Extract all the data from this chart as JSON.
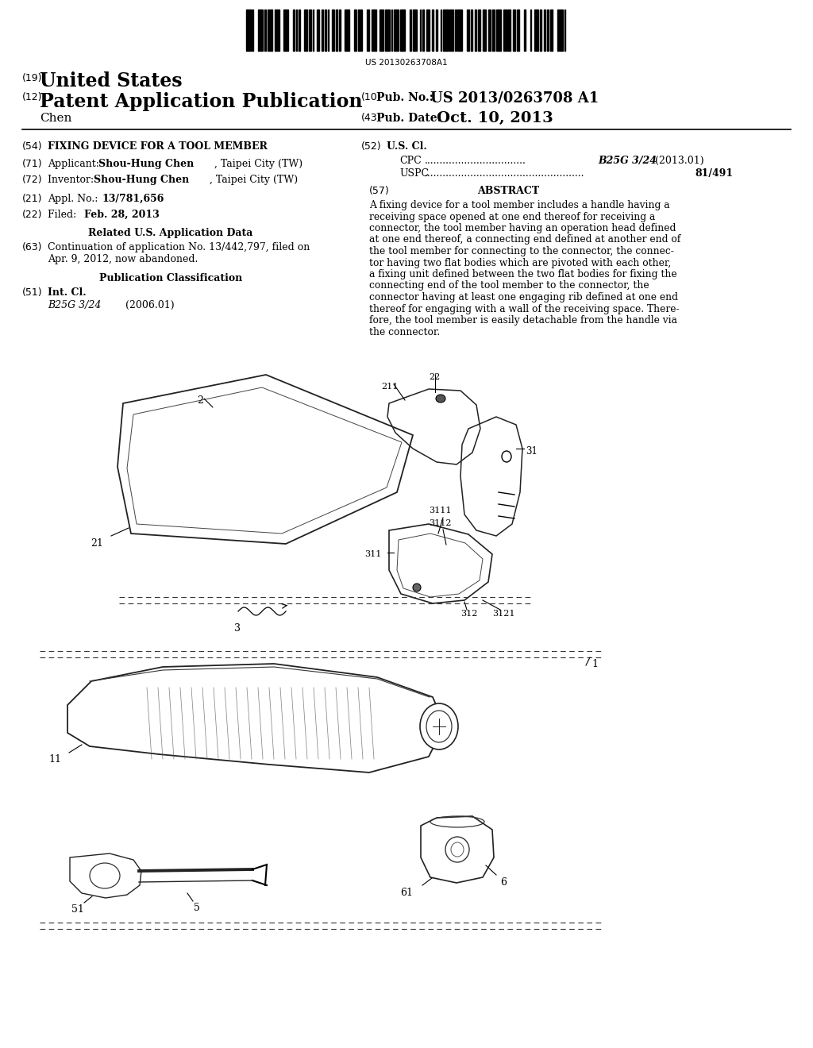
{
  "background_color": "#ffffff",
  "barcode_text": "US 20130263708A1",
  "header": {
    "line1_num": "(19)",
    "line1_text": "United States",
    "line2_num": "(12)",
    "line2_text": "Patent Application Publication",
    "line3_left": "Chen",
    "pub_no_num": "(10)",
    "pub_no_label": "Pub. No.:",
    "pub_no_val": "US 2013/0263708 A1",
    "pub_date_num": "(43)",
    "pub_date_label": "Pub. Date:",
    "pub_date_val": "Oct. 10, 2013"
  },
  "left_col": {
    "title_num": "(54)",
    "title_text": "FIXING DEVICE FOR A TOOL MEMBER",
    "applicant_num": "(71)",
    "applicant_label": "Applicant:",
    "applicant_val": "Shou-Hung Chen",
    "applicant_addr": ", Taipei City (TW)",
    "inventor_num": "(72)",
    "inventor_label": "Inventor:",
    "inventor_val": "Shou-Hung Chen",
    "inventor_addr": ", Taipei City (TW)",
    "appl_num_tag": "(21)",
    "appl_num_label": "Appl. No.:",
    "appl_num_val": "13/781,656",
    "filed_num": "(22)",
    "filed_label": "Filed:",
    "filed_val": "Feb. 28, 2013",
    "related_header": "Related U.S. Application Data",
    "continuation_num": "(63)",
    "continuation_line1": "Continuation of application No. 13/442,797, filed on",
    "continuation_line2": "Apr. 9, 2012, now abandoned.",
    "pub_class_header": "Publication Classification",
    "int_cl_num": "(51)",
    "int_cl_label": "Int. Cl.",
    "int_cl_val": "B25G 3/24",
    "int_cl_year": "(2006.01)"
  },
  "right_col": {
    "us_cl_num": "(52)",
    "us_cl_label": "U.S. Cl.",
    "cpc_label": "CPC",
    "cpc_val": "B25G 3/24",
    "cpc_year": "(2013.01)",
    "uspc_label": "USPC",
    "uspc_val": "81/491",
    "abstract_num": "(57)",
    "abstract_header": "ABSTRACT",
    "abstract_lines": [
      "A fixing device for a tool member includes a handle having a",
      "receiving space opened at one end thereof for receiving a",
      "connector, the tool member having an operation head defined",
      "at one end thereof, a connecting end defined at another end of",
      "the tool member for connecting to the connector, the connec-",
      "tor having two flat bodies which are pivoted with each other,",
      "a fixing unit defined between the two flat bodies for fixing the",
      "connecting end of the tool member to the connector, the",
      "connector having at least one engaging rib defined at one end",
      "thereof for engaging with a wall of the receiving space. There-",
      "fore, the tool member is easily detachable from the handle via",
      "the connector."
    ]
  },
  "diagram_labels": {
    "label_1": "1",
    "label_2": "2",
    "label_3": "3",
    "label_5": "5",
    "label_6": "6",
    "label_11": "11",
    "label_21": "21",
    "label_22": "22",
    "label_31": "31",
    "label_51": "51",
    "label_61": "61",
    "label_211": "211",
    "label_311": "311",
    "label_312": "312",
    "label_3111": "3111",
    "label_3112": "3112",
    "label_3121": "3121"
  }
}
